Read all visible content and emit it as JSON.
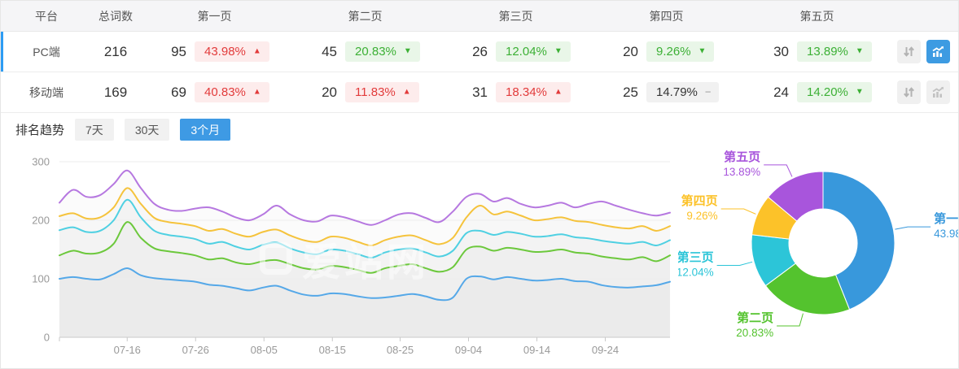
{
  "table": {
    "headers": {
      "platform": "平台",
      "total": "总词数",
      "pages": [
        "第一页",
        "第二页",
        "第三页",
        "第四页",
        "第五页"
      ]
    },
    "rows": [
      {
        "platform": "PC端",
        "total": "216",
        "selected": true,
        "pages": [
          {
            "count": "95",
            "percent": "43.98%",
            "arrow": "▲",
            "state": "up"
          },
          {
            "count": "45",
            "percent": "20.83%",
            "arrow": "▼",
            "state": "down"
          },
          {
            "count": "26",
            "percent": "12.04%",
            "arrow": "▼",
            "state": "down"
          },
          {
            "count": "20",
            "percent": "9.26%",
            "arrow": "▼",
            "state": "down"
          },
          {
            "count": "30",
            "percent": "13.89%",
            "arrow": "▼",
            "state": "down"
          }
        ]
      },
      {
        "platform": "移动端",
        "total": "169",
        "selected": false,
        "pages": [
          {
            "count": "69",
            "percent": "40.83%",
            "arrow": "▲",
            "state": "up"
          },
          {
            "count": "20",
            "percent": "11.83%",
            "arrow": "▲",
            "state": "up"
          },
          {
            "count": "31",
            "percent": "18.34%",
            "arrow": "▲",
            "state": "up"
          },
          {
            "count": "25",
            "percent": "14.79%",
            "arrow": "−",
            "state": "flat"
          },
          {
            "count": "24",
            "percent": "14.20%",
            "arrow": "▼",
            "state": "down"
          }
        ]
      }
    ]
  },
  "trend_section": {
    "label": "排名趋势",
    "tabs": [
      {
        "label": "7天",
        "active": false
      },
      {
        "label": "30天",
        "active": false
      },
      {
        "label": "3个月",
        "active": true
      }
    ]
  },
  "watermark": "爱站网",
  "colors": {
    "accent_blue": "#3d9be2",
    "selected_bar": "#2d9cf4",
    "badge_red": "#e23b3b",
    "badge_red_bg": "#fdecec",
    "badge_green": "#3cb035",
    "badge_green_bg": "#e9f6e8",
    "badge_flat_bg": "#f1f1f1",
    "header_bg": "#f5f5f7",
    "grid": "#ececec",
    "axis": "#c9c9c9",
    "tick_label": "#999999"
  },
  "chart_data": [
    {
      "type": "line",
      "title": "排名趋势 3个月",
      "ylim": [
        0,
        300
      ],
      "y_ticks": [
        0,
        100,
        200,
        300
      ],
      "grid": true,
      "legend": "none",
      "x_ticks": [
        {
          "label": "07-16",
          "pos": 0.111
        },
        {
          "label": "07-26",
          "pos": 0.223
        },
        {
          "label": "08-05",
          "pos": 0.335
        },
        {
          "label": "08-15",
          "pos": 0.447
        },
        {
          "label": "08-25",
          "pos": 0.558
        },
        {
          "label": "09-04",
          "pos": 0.67
        },
        {
          "label": "09-14",
          "pos": 0.782
        },
        {
          "label": "09-24",
          "pos": 0.894
        }
      ],
      "series": [
        {
          "name": "第一页",
          "color": "#55a8e8",
          "values": [
            100,
            103,
            100,
            99,
            108,
            118,
            106,
            101,
            99,
            97,
            95,
            90,
            88,
            84,
            80,
            85,
            88,
            80,
            73,
            71,
            75,
            74,
            70,
            67,
            68,
            71,
            74,
            70,
            64,
            68,
            100,
            104,
            99,
            103,
            100,
            97,
            98,
            100,
            96,
            95,
            89,
            86,
            85,
            87,
            89,
            95
          ]
        },
        {
          "name": "第二页",
          "color": "#6cc83c",
          "values": [
            140,
            148,
            143,
            145,
            160,
            197,
            170,
            152,
            147,
            144,
            140,
            133,
            135,
            128,
            125,
            130,
            132,
            125,
            118,
            116,
            122,
            120,
            115,
            110,
            118,
            122,
            125,
            118,
            112,
            120,
            150,
            155,
            148,
            153,
            150,
            146,
            147,
            150,
            145,
            143,
            138,
            135,
            133,
            137,
            130,
            140
          ]
        },
        {
          "name": "第三页",
          "color": "#4fd0e2",
          "values": [
            183,
            188,
            180,
            182,
            200,
            235,
            205,
            182,
            175,
            172,
            168,
            160,
            163,
            155,
            150,
            158,
            162,
            152,
            145,
            142,
            150,
            148,
            142,
            136,
            145,
            150,
            152,
            145,
            138,
            148,
            178,
            182,
            175,
            180,
            177,
            172,
            173,
            176,
            171,
            169,
            165,
            162,
            160,
            163,
            157,
            166
          ]
        },
        {
          "name": "第四页",
          "color": "#f5c33c",
          "values": [
            207,
            212,
            203,
            205,
            222,
            255,
            228,
            204,
            197,
            194,
            190,
            182,
            185,
            177,
            172,
            180,
            184,
            174,
            166,
            163,
            172,
            170,
            163,
            157,
            166,
            172,
            174,
            166,
            159,
            170,
            205,
            225,
            210,
            215,
            208,
            200,
            202,
            205,
            199,
            197,
            192,
            188,
            186,
            190,
            182,
            190
          ]
        },
        {
          "name": "第五页",
          "color": "#b678e0",
          "values": [
            230,
            252,
            240,
            243,
            262,
            285,
            255,
            228,
            218,
            216,
            220,
            222,
            215,
            205,
            200,
            210,
            225,
            210,
            200,
            198,
            208,
            205,
            198,
            192,
            200,
            210,
            212,
            204,
            197,
            215,
            240,
            245,
            232,
            238,
            228,
            222,
            225,
            230,
            222,
            228,
            232,
            225,
            218,
            212,
            208,
            213
          ]
        }
      ]
    },
    {
      "type": "pie",
      "inner_radius_ratio": 0.477,
      "slices": [
        {
          "name": "第一页",
          "percent": 43.98,
          "color": "#3898dc"
        },
        {
          "name": "第二页",
          "percent": 20.83,
          "color": "#54c32e"
        },
        {
          "name": "第三页",
          "percent": 12.04,
          "color": "#2cc5d8"
        },
        {
          "name": "第四页",
          "percent": 9.26,
          "color": "#fcc229"
        },
        {
          "name": "第五页",
          "percent": 13.89,
          "color": "#a855dc"
        }
      ]
    }
  ]
}
